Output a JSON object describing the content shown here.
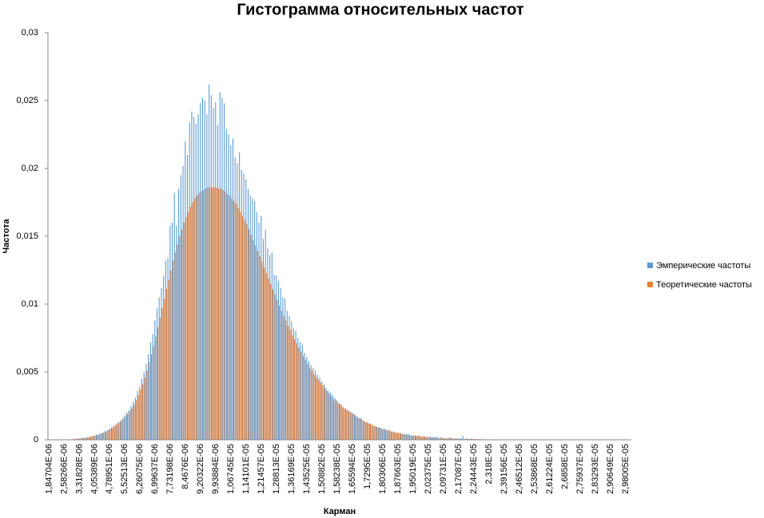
{
  "chart_data": {
    "type": "bar",
    "title": "Гистограмма относительных частот",
    "x_label": "Карман",
    "y_label": "Частота",
    "categories": [
      "1,84704E-06",
      null,
      null,
      null,
      null,
      null,
      null,
      "2,58266E-06",
      null,
      null,
      null,
      null,
      null,
      null,
      "3,31828E-06",
      null,
      null,
      null,
      null,
      null,
      null,
      "4,05389E-06",
      null,
      null,
      null,
      null,
      null,
      null,
      "4,78951E-06",
      null,
      null,
      null,
      null,
      null,
      null,
      "5,52513E-06",
      null,
      null,
      null,
      null,
      null,
      null,
      "6,26075E-06",
      null,
      null,
      null,
      null,
      null,
      null,
      "6,99637E-06",
      null,
      null,
      null,
      null,
      null,
      null,
      "7,73198E-06",
      null,
      null,
      null,
      null,
      null,
      null,
      "8,4676E-06",
      null,
      null,
      null,
      null,
      null,
      null,
      "9,20322E-06",
      null,
      null,
      null,
      null,
      null,
      null,
      "9,93884E-06",
      null,
      null,
      null,
      null,
      null,
      null,
      "1,06745E-05",
      null,
      null,
      null,
      null,
      null,
      null,
      "1,14101E-05",
      null,
      null,
      null,
      null,
      null,
      null,
      "1,21457E-05",
      null,
      null,
      null,
      null,
      null,
      null,
      "1,28813E-05",
      null,
      null,
      null,
      null,
      null,
      null,
      "1,36169E-05",
      null,
      null,
      null,
      null,
      null,
      null,
      "1,43525E-05",
      null,
      null,
      null,
      null,
      null,
      null,
      "1,50882E-05",
      null,
      null,
      null,
      null,
      null,
      null,
      "1,58238E-05",
      null,
      null,
      null,
      null,
      null,
      null,
      "1,65594E-05",
      null,
      null,
      null,
      null,
      null,
      null,
      "1,7295E-05",
      null,
      null,
      null,
      null,
      null,
      null,
      "1,80306E-05",
      null,
      null,
      null,
      null,
      null,
      null,
      "1,87663E-05",
      null,
      null,
      null,
      null,
      null,
      null,
      "1,95019E-05",
      null,
      null,
      null,
      null,
      null,
      null,
      "2,02375E-05",
      null,
      null,
      null,
      null,
      null,
      null,
      "2,09731E-05",
      null,
      null,
      null,
      null,
      null,
      null,
      "2,17087E-05",
      null,
      null,
      null,
      null,
      null,
      null,
      "2,24443E-05",
      null,
      null,
      null,
      null,
      null,
      null,
      "2,318E-05",
      null,
      null,
      null,
      null,
      null,
      null,
      "2,39156E-05",
      null,
      null,
      null,
      null,
      null,
      null,
      "2,46512E-05",
      null,
      null,
      null,
      null,
      null,
      null,
      "2,53868E-05",
      null,
      null,
      null,
      null,
      null,
      null,
      "2,61224E-05",
      null,
      null,
      null,
      null,
      null,
      null,
      "2,6858E-05",
      null,
      null,
      null,
      null,
      null,
      null,
      "2,75937E-05",
      null,
      null,
      null,
      null,
      null,
      null,
      "2,83293E-05",
      null,
      null,
      null,
      null,
      null,
      null,
      "2,90649E-05",
      null,
      null,
      null,
      null,
      null,
      null,
      "2,98005E-05",
      null,
      null
    ],
    "series": [
      {
        "name": "Эмперические частоты",
        "color": "#5b9bd5",
        "values": [
          0,
          0,
          0,
          0,
          0,
          0,
          0,
          1e-05,
          0,
          3e-05,
          2e-05,
          5e-05,
          4e-05,
          9e-05,
          0.0001,
          0.00011,
          0.00015,
          0.00014,
          0.0002,
          0.00021,
          0.00028,
          0.0003,
          0.00038,
          0.00037,
          0.00049,
          0.00052,
          0.00065,
          0.0007,
          0.00082,
          0.0009,
          0.00105,
          0.00115,
          0.0013,
          0.0014,
          0.0016,
          0.0018,
          0.002,
          0.0022,
          0.0025,
          0.0028,
          0.0031,
          0.0036,
          0.0039,
          0.0045,
          0.005,
          0.0056,
          0.0063,
          0.0072,
          0.0078,
          0.0088,
          0.0097,
          0.0105,
          0.0112,
          0.0121,
          0.0132,
          0.0134,
          0.0158,
          0.016,
          0.0182,
          0.0158,
          0.0185,
          0.0195,
          0.0202,
          0.022,
          0.021,
          0.0234,
          0.0242,
          0.0238,
          0.0233,
          0.024,
          0.0248,
          0.0252,
          0.025,
          0.024,
          0.0262,
          0.0254,
          0.0245,
          0.0249,
          0.0232,
          0.0256,
          0.0252,
          0.0248,
          0.0229,
          0.0225,
          0.0217,
          0.0222,
          0.0208,
          0.0204,
          0.0212,
          0.0199,
          0.0196,
          0.0192,
          0.0185,
          0.018,
          0.0178,
          0.0176,
          0.0168,
          0.016,
          0.0165,
          0.0148,
          0.0155,
          0.0141,
          0.0136,
          0.0138,
          0.0122,
          0.0121,
          0.0117,
          0.0112,
          0.0105,
          0.0104,
          0.0095,
          0.0091,
          0.0087,
          0.0082,
          0.008,
          0.0075,
          0.0072,
          0.007,
          0.0064,
          0.0061,
          0.0058,
          0.0055,
          0.0053,
          0.0051,
          0.0048,
          0.0046,
          0.0043,
          0.0041,
          0.0038,
          0.0036,
          0.0035,
          0.0033,
          0.0031,
          0.0029,
          0.0027,
          0.0026,
          0.0024,
          0.0023,
          0.0022,
          0.0021,
          0.002,
          0.0019,
          0.0017,
          0.0016,
          0.0016,
          0.0014,
          0.0013,
          0.0013,
          0.0012,
          0.0011,
          0.001,
          0.001,
          0.0009,
          0.0009,
          0.0008,
          0.0008,
          0.0007,
          0.0007,
          0.0006,
          0.0006,
          0.0005,
          0.0005,
          0.0005,
          0.0004,
          0.0004,
          0.0004,
          0.0004,
          0.0003,
          0.0003,
          0.0003,
          0.0003,
          0.0003,
          0.0002,
          0.0003,
          0.0002,
          0.0002,
          0.0002,
          0.0002,
          0.0002,
          0.0002,
          0.0001,
          0.0002,
          0.0001,
          0.0001,
          0.0001,
          0.0002,
          0.0001,
          0.0001,
          0.0001,
          0.0001,
          0.0001,
          0.0003,
          5e-05,
          0.0001,
          5e-05,
          0.0001,
          5e-05,
          5e-05,
          5e-05,
          5e-05,
          4e-05,
          4e-05,
          3e-05,
          3e-05,
          3e-05,
          3e-05,
          3e-05,
          3e-05,
          3e-05,
          3e-05,
          2e-05,
          2e-05,
          2e-05,
          2e-05,
          2e-05,
          2e-05,
          2e-05,
          2e-05,
          2e-05,
          1e-05,
          1e-05,
          1e-05,
          1e-05,
          1e-05,
          1e-05,
          1e-05,
          1e-05,
          1e-05,
          1e-05,
          1e-05,
          1e-05,
          1e-05,
          1e-05,
          1e-05,
          1e-05,
          1e-05,
          1e-05,
          1e-05,
          1e-05,
          1e-05,
          1e-05,
          0,
          0,
          0,
          0,
          0,
          0,
          0,
          0,
          0,
          0,
          0,
          0,
          0,
          0,
          0,
          0,
          0,
          0,
          0,
          0,
          0,
          0,
          0,
          0,
          0,
          0,
          0,
          0
        ]
      },
      {
        "name": "Теоретические частоты",
        "color": "#ed7d31",
        "values": [
          0,
          0,
          0,
          0,
          1e-05,
          1e-05,
          1e-05,
          2e-05,
          2e-05,
          3e-05,
          4e-05,
          5e-05,
          6e-05,
          8e-05,
          0.0001,
          0.00012,
          0.00014,
          0.00016,
          0.00019,
          0.00022,
          0.00026,
          0.0003,
          0.00035,
          0.0004,
          0.00046,
          0.00053,
          0.0006,
          0.00068,
          0.00077,
          0.00087,
          0.00098,
          0.0011,
          0.00123,
          0.00137,
          0.00152,
          0.0017,
          0.0019,
          0.0021,
          0.0023,
          0.0026,
          0.0029,
          0.0033,
          0.0037,
          0.0041,
          0.0046,
          0.0051,
          0.0057,
          0.0063,
          0.0069,
          0.0076,
          0.0083,
          0.009,
          0.0097,
          0.0104,
          0.0111,
          0.0118,
          0.0125,
          0.0132,
          0.0138,
          0.0144,
          0.015,
          0.0155,
          0.016,
          0.0164,
          0.0168,
          0.0172,
          0.0175,
          0.0178,
          0.018,
          0.0182,
          0.0183,
          0.0184,
          0.0185,
          0.0186,
          0.0186,
          0.0186,
          0.0186,
          0.0186,
          0.0185,
          0.0185,
          0.0184,
          0.0183,
          0.0181,
          0.018,
          0.0178,
          0.0176,
          0.0174,
          0.0171,
          0.0168,
          0.0165,
          0.0162,
          0.0159,
          0.0155,
          0.0151,
          0.0147,
          0.0143,
          0.0139,
          0.0135,
          0.0131,
          0.0127,
          0.0123,
          0.0119,
          0.0115,
          0.0111,
          0.0107,
          0.0103,
          0.0099,
          0.0095,
          0.0091,
          0.0088,
          0.0084,
          0.0081,
          0.0077,
          0.0074,
          0.0071,
          0.0068,
          0.0065,
          0.0062,
          0.0059,
          0.0056,
          0.0053,
          0.0051,
          0.0048,
          0.0046,
          0.0044,
          0.0042,
          0.004,
          0.0038,
          0.0036,
          0.0034,
          0.0032,
          0.003,
          0.0029,
          0.0027,
          0.0026,
          0.0024,
          0.0023,
          0.0022,
          0.0021,
          0.002,
          0.0019,
          0.0018,
          0.0017,
          0.0016,
          0.0015,
          0.0014,
          0.0013,
          0.0012,
          0.0012,
          0.0011,
          0.001,
          0.00095,
          0.0009,
          0.00085,
          0.0008,
          0.00075,
          0.0007,
          0.00066,
          0.00062,
          0.00058,
          0.00055,
          0.00051,
          0.00048,
          0.00045,
          0.00042,
          0.0004,
          0.00037,
          0.00035,
          0.00033,
          0.00031,
          0.00029,
          0.00027,
          0.00025,
          0.00024,
          0.00022,
          0.00021,
          0.0002,
          0.00018,
          0.00017,
          0.00016,
          0.00015,
          0.00014,
          0.00013,
          0.00012,
          0.00012,
          0.00011,
          0.0001,
          0.0001,
          9e-05,
          9e-05,
          8e-05,
          8e-05,
          7e-05,
          7e-05,
          6e-05,
          6e-05,
          6e-05,
          5e-05,
          5e-05,
          5e-05,
          4e-05,
          4e-05,
          4e-05,
          4e-05,
          3e-05,
          3e-05,
          3e-05,
          3e-05,
          3e-05,
          2e-05,
          2e-05,
          2e-05,
          2e-05,
          2e-05,
          2e-05,
          2e-05,
          2e-05,
          2e-05,
          2e-05,
          2e-05,
          1e-05,
          1e-05,
          1e-05,
          1e-05,
          1e-05,
          1e-05,
          1e-05,
          1e-05,
          1e-05,
          1e-05,
          1e-05,
          1e-05,
          1e-05,
          1e-05,
          1e-05,
          1e-05,
          1e-05,
          1e-05,
          1e-05,
          1e-05,
          1e-05,
          0,
          0,
          0,
          0,
          0,
          0,
          0,
          0,
          0,
          0,
          0,
          0,
          0,
          0,
          0,
          0,
          0,
          0,
          0,
          0,
          0,
          0,
          0,
          0,
          0,
          0,
          0,
          0
        ]
      }
    ],
    "ylim": [
      0,
      0.03
    ],
    "yticks": [
      0,
      {
        "value": 0.005,
        "label": "0,005"
      },
      {
        "value": 0.01,
        "label": "0,01"
      },
      {
        "value": 0.015,
        "label": "0,015"
      },
      {
        "value": 0.02,
        "label": "0,02"
      },
      {
        "value": 0.025,
        "label": "0,025"
      },
      {
        "value": 0.03,
        "label": "0,03"
      }
    ],
    "grid": false,
    "legend": "right"
  }
}
